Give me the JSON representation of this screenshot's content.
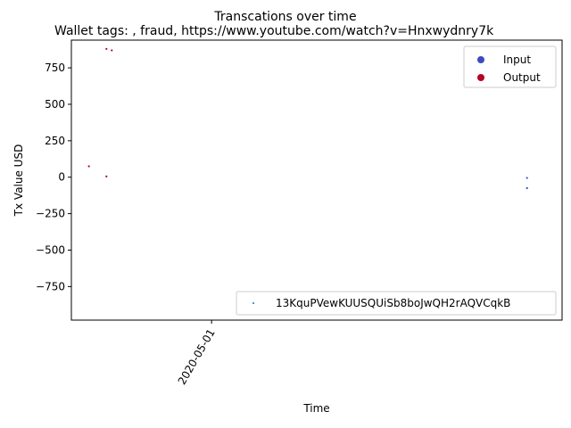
{
  "chart_data": {
    "type": "scatter",
    "suptitle": "Transcations over time",
    "title": "Wallet tags: , fraud, https://www.youtube.com/watch?v=Hnxwydnry7k",
    "xlabel": "Time",
    "ylabel": "Tx Value USD",
    "x_ticks": [
      "2020-05-01"
    ],
    "y_ticks": [
      750,
      500,
      250,
      0,
      -250,
      -500,
      -750
    ],
    "y_tick_labels": [
      "750",
      "500",
      "250",
      "0",
      "−250",
      "−500",
      "−750"
    ],
    "ylim": [
      -980,
      940
    ],
    "xlim": [
      "2020-04-23",
      "2020-05-21"
    ],
    "grid": false,
    "legends": [
      {
        "placement": "upper-right",
        "entries": [
          {
            "label": "Input",
            "color": "#3b4cc0",
            "marker": "circle"
          },
          {
            "label": "Output",
            "color": "#b40426",
            "marker": "circle"
          }
        ]
      },
      {
        "placement": "lower-right",
        "entries": [
          {
            "label": "13KquPVewKUUSQUiSb8boJwQH2rAQVCqkB",
            "color": "#1f77b4",
            "marker": "point"
          }
        ]
      }
    ],
    "series": [
      {
        "name": "Output",
        "color": "#b40426",
        "points": [
          {
            "x": "2020-04-24",
            "y": 75
          },
          {
            "x": "2020-04-25",
            "y": 880
          },
          {
            "x": "2020-04-25",
            "y": 5
          },
          {
            "x": "2020-04-25",
            "y": 870
          }
        ]
      },
      {
        "name": "Input",
        "color": "#3b4cc0",
        "points": [
          {
            "x": "2020-05-19",
            "y": -5
          },
          {
            "x": "2020-05-19",
            "y": -75
          }
        ]
      }
    ]
  }
}
